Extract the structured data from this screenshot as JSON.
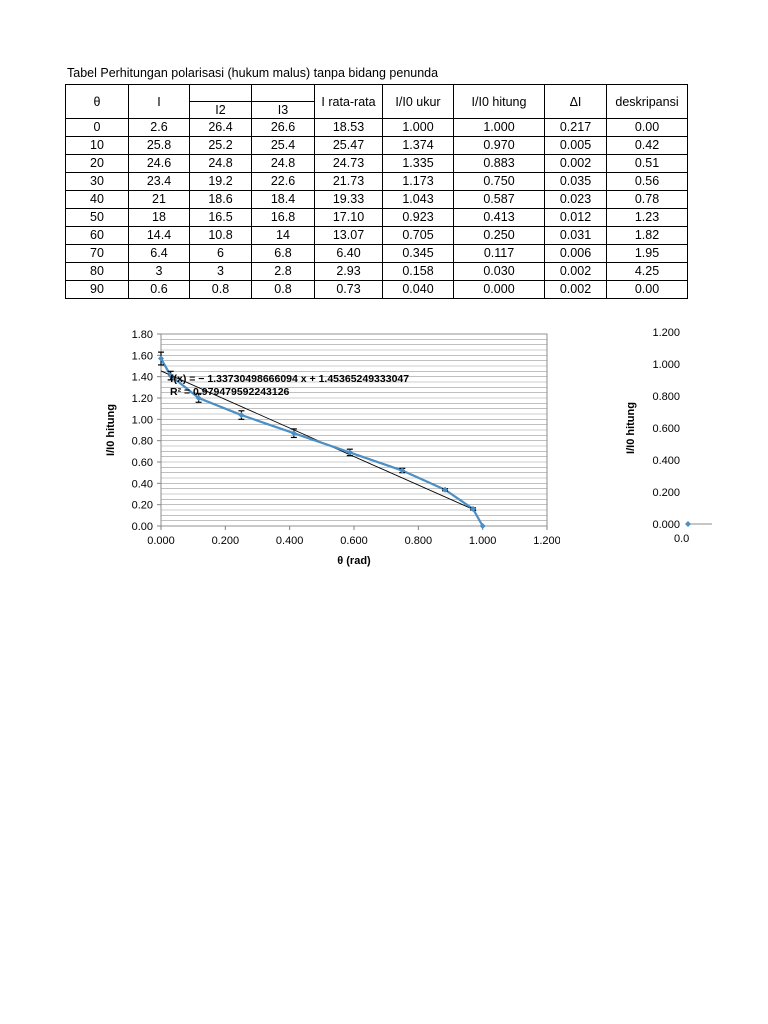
{
  "table": {
    "title": "Tabel Perhitungan polarisasi (hukum malus) tanpa bidang penunda",
    "headers": {
      "theta": "θ",
      "i1": "I",
      "i2": "I2",
      "i3": "I3",
      "rata": "I rata-rata",
      "ukur": "I/I0 ukur",
      "hitung": "I/I0 hitung",
      "delta": "ΔI",
      "desk": "deskripansi"
    },
    "rows": [
      [
        "0",
        "2.6",
        "26.4",
        "26.6",
        "18.53",
        "1.000",
        "1.000",
        "0.217",
        "0.00"
      ],
      [
        "10",
        "25.8",
        "25.2",
        "25.4",
        "25.47",
        "1.374",
        "0.970",
        "0.005",
        "0.42"
      ],
      [
        "20",
        "24.6",
        "24.8",
        "24.8",
        "24.73",
        "1.335",
        "0.883",
        "0.002",
        "0.51"
      ],
      [
        "30",
        "23.4",
        "19.2",
        "22.6",
        "21.73",
        "1.173",
        "0.750",
        "0.035",
        "0.56"
      ],
      [
        "40",
        "21",
        "18.6",
        "18.4",
        "19.33",
        "1.043",
        "0.587",
        "0.023",
        "0.78"
      ],
      [
        "50",
        "18",
        "16.5",
        "16.8",
        "17.10",
        "0.923",
        "0.413",
        "0.012",
        "1.23"
      ],
      [
        "60",
        "14.4",
        "10.8",
        "14",
        "13.07",
        "0.705",
        "0.250",
        "0.031",
        "1.82"
      ],
      [
        "70",
        "6.4",
        "6",
        "6.8",
        "6.40",
        "0.345",
        "0.117",
        "0.006",
        "1.95"
      ],
      [
        "80",
        "3",
        "3",
        "2.8",
        "2.93",
        "0.158",
        "0.030",
        "0.002",
        "4.25"
      ],
      [
        "90",
        "0.6",
        "0.8",
        "0.8",
        "0.73",
        "0.040",
        "0.000",
        "0.002",
        "0.00"
      ]
    ]
  },
  "chart_data": [
    {
      "type": "line",
      "title": "",
      "xlabel": "θ (rad)",
      "ylabel": "I/I0 hitung",
      "xlim": [
        0,
        1.2
      ],
      "ylim": [
        0,
        1.8
      ],
      "xticks": [
        "0.000",
        "0.200",
        "0.400",
        "0.600",
        "0.800",
        "1.000",
        "1.200"
      ],
      "yticks": [
        "0.00",
        "0.20",
        "0.40",
        "0.60",
        "0.80",
        "1.00",
        "1.20",
        "1.40",
        "1.60",
        "1.80"
      ],
      "grid": true,
      "legend": "none",
      "series_color": "#4a8fc6",
      "trend_color": "#000000",
      "series": [
        {
          "x": [
            0.0,
            0.03,
            0.117,
            0.25,
            0.413,
            0.587,
            0.75,
            0.883,
            0.97,
            1.0
          ],
          "y": [
            1.57,
            1.41,
            1.2,
            1.04,
            0.87,
            0.69,
            0.52,
            0.34,
            0.16,
            0.0
          ],
          "err": [
            0.06,
            0.04,
            0.04,
            0.04,
            0.04,
            0.03,
            0.02,
            0.01,
            0.01,
            0.0
          ]
        }
      ],
      "trendline": {
        "slope": -1.33730498666094,
        "intercept": 1.45365249333047,
        "x_range": [
          0.0,
          0.98
        ],
        "equation_label": "f(x) = − 1.33730498666094 x + 1.45365249333047",
        "r2_label": "R² = 0.979479592243126"
      }
    },
    {
      "type": "line",
      "title": "",
      "xlabel": "",
      "ylabel": "I/I0 hitung",
      "ylim": [
        0,
        1.2
      ],
      "yticks": [
        "1.200",
        "1.000",
        "0.800",
        "0.600",
        "0.400",
        "0.200",
        "0.000"
      ],
      "xticks_visible": [
        "0.0"
      ],
      "series_color": "#4a8fc6",
      "series": [
        {
          "x": [
            0.0
          ],
          "y": [
            0.0
          ]
        }
      ]
    }
  ]
}
